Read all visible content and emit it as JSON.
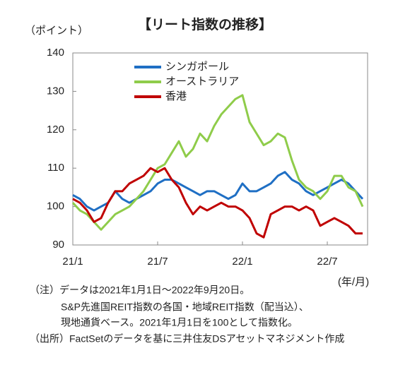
{
  "chart_data": {
    "type": "line",
    "title": "【リート指数の推移】",
    "y_label": "（ポイント）",
    "x_label": "(年/月)",
    "notes": [
      "（注）データは2021年1月1日～2022年9月20日。",
      "S&P先進国REIT指数の各国・地域REIT指数（配当込）、",
      "現地通貨ベース。2021年1月1日を100として指数化。",
      "（出所）FactSetのデータを基に三井住友DSアセットマネジメント作成"
    ],
    "categories": [
      "21/1",
      null,
      null,
      null,
      null,
      null,
      null,
      null,
      null,
      null,
      null,
      null,
      "21/7",
      null,
      null,
      null,
      null,
      null,
      null,
      null,
      null,
      null,
      null,
      null,
      "22/1",
      null,
      null,
      null,
      null,
      null,
      null,
      null,
      null,
      null,
      null,
      null,
      "22/7",
      null,
      null,
      null,
      null,
      null
    ],
    "series": [
      {
        "name": "シンガポール",
        "color": "#1f6fc4",
        "values": [
          103,
          102,
          100,
          99,
          100,
          101,
          104,
          102,
          101,
          102,
          103,
          104,
          106,
          107,
          107,
          106,
          105,
          104,
          103,
          104,
          104,
          103,
          102,
          103,
          106,
          104,
          104,
          105,
          106,
          108,
          109,
          107,
          106,
          104,
          103,
          104,
          105,
          106,
          107,
          106,
          104,
          102
        ]
      },
      {
        "name": "オーストラリア",
        "color": "#8fcc4a",
        "values": [
          101,
          99,
          98,
          96,
          94,
          96,
          98,
          99,
          100,
          102,
          104,
          107,
          110,
          111,
          114,
          117,
          113,
          115,
          119,
          117,
          121,
          124,
          126,
          128,
          129,
          122,
          119,
          116,
          117,
          119,
          118,
          112,
          107,
          105,
          104,
          102,
          104,
          108,
          108,
          105,
          104,
          100
        ]
      },
      {
        "name": "香港",
        "color": "#c00000",
        "values": [
          102,
          101,
          99,
          96,
          97,
          101,
          104,
          104,
          106,
          107,
          108,
          110,
          109,
          110,
          107,
          105,
          101,
          98,
          100,
          99,
          100,
          101,
          100,
          100,
          99,
          97,
          93,
          92,
          98,
          99,
          100,
          100,
          99,
          100,
          99,
          95,
          96,
          97,
          96,
          95,
          93,
          93
        ]
      }
    ],
    "ylim": [
      90,
      140
    ],
    "yticks": [
      90,
      100,
      110,
      120,
      130,
      140
    ],
    "grid": false
  }
}
